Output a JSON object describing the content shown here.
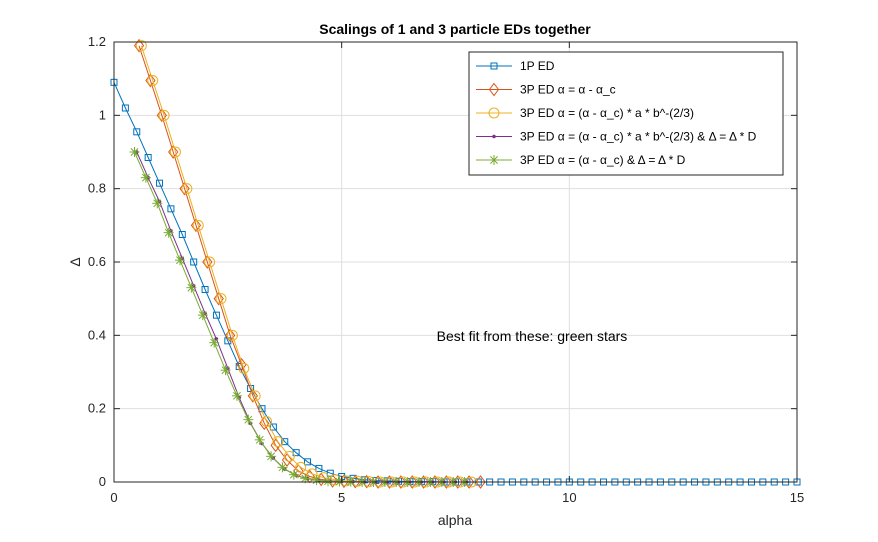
{
  "chart_data": {
    "type": "line",
    "title": "Scalings of 1 and 3 particle EDs together",
    "xlabel": "alpha",
    "ylabel": "Δ",
    "xlim": [
      0,
      15
    ],
    "ylim": [
      0,
      1.2
    ],
    "xticks": [
      "0",
      "5",
      "10",
      "15"
    ],
    "yticks": [
      "0",
      "0.2",
      "0.4",
      "0.6",
      "0.8",
      "1",
      "1.2"
    ],
    "grid": true,
    "legend_position": "top-right",
    "annotation": "Best fit from these: green stars",
    "series": [
      {
        "name": "1P ED",
        "color": "#0072BD",
        "marker": "square",
        "x": [
          0,
          0.25,
          0.5,
          0.75,
          1,
          1.25,
          1.5,
          1.75,
          2,
          2.25,
          2.5,
          2.75,
          3,
          3.25,
          3.5,
          3.75,
          4,
          4.25,
          4.5,
          4.75,
          5,
          5.25,
          5.5,
          5.75,
          6,
          6.25,
          6.5,
          6.75,
          7,
          7.25,
          7.5,
          7.75,
          8,
          8.25,
          8.5,
          8.75,
          9,
          9.25,
          9.5,
          9.75,
          10,
          10.25,
          10.5,
          10.75,
          11,
          11.25,
          11.5,
          11.75,
          12,
          12.25,
          12.5,
          12.75,
          13,
          13.25,
          13.5,
          13.75,
          14,
          14.25,
          14.5,
          14.75,
          15
        ],
        "y": [
          1.09,
          1.02,
          0.955,
          0.885,
          0.815,
          0.745,
          0.675,
          0.6,
          0.525,
          0.455,
          0.385,
          0.315,
          0.255,
          0.2,
          0.15,
          0.11,
          0.08,
          0.055,
          0.037,
          0.024,
          0.015,
          0.01,
          0.006,
          0.004,
          0.003,
          0.002,
          0.001,
          0.001,
          0.001,
          0,
          0,
          0,
          0,
          0,
          0,
          0,
          0,
          0,
          0,
          0,
          0,
          0,
          0,
          0,
          0,
          0,
          0,
          0,
          0,
          0,
          0,
          0,
          0,
          0,
          0,
          0,
          0,
          0,
          0,
          0,
          0
        ]
      },
      {
        "name": "3P ED α = α - α_c",
        "color": "#D95319",
        "marker": "diamond",
        "x": [
          0.55,
          0.8,
          1.05,
          1.3,
          1.55,
          1.8,
          2.05,
          2.3,
          2.55,
          2.8,
          3.05,
          3.3,
          3.55,
          3.8,
          4.05,
          4.3,
          4.55,
          4.8,
          5.05,
          5.3,
          5.55,
          5.8,
          6.05,
          6.3,
          6.55,
          6.8,
          7.05,
          7.3,
          7.55,
          7.8,
          8.05
        ],
        "y": [
          1.19,
          1.095,
          1.0,
          0.9,
          0.8,
          0.7,
          0.6,
          0.5,
          0.4,
          0.32,
          0.235,
          0.16,
          0.1,
          0.06,
          0.03,
          0.015,
          0.007,
          0.003,
          0.002,
          0.001,
          0.001,
          0,
          0,
          0,
          0,
          0,
          0,
          0,
          0,
          0,
          0
        ]
      },
      {
        "name": "3P ED α = (α - α_c) * a * b^-(2/3)",
        "color": "#EDB120",
        "marker": "circle",
        "x": [
          0.6,
          0.85,
          1.1,
          1.35,
          1.6,
          1.85,
          2.1,
          2.35,
          2.6,
          2.85,
          3.1,
          3.35,
          3.6,
          3.85,
          4.1,
          4.35,
          4.6,
          4.85,
          5.1,
          5.35,
          5.6,
          5.85,
          6.1,
          6.35,
          6.6,
          6.85,
          7.1,
          7.35,
          7.6,
          7.85
        ],
        "y": [
          1.19,
          1.095,
          1.0,
          0.9,
          0.8,
          0.7,
          0.6,
          0.5,
          0.4,
          0.31,
          0.235,
          0.165,
          0.11,
          0.07,
          0.04,
          0.022,
          0.012,
          0.006,
          0.003,
          0.002,
          0.001,
          0,
          0,
          0,
          0,
          0,
          0,
          0,
          0,
          0
        ]
      },
      {
        "name": "3P ED α = (α - α_c) * a * b^-(2/3) & Δ = Δ * D",
        "color": "#7E2F8E",
        "marker": "point",
        "x": [
          0.5,
          0.75,
          1.0,
          1.25,
          1.5,
          1.75,
          2.0,
          2.25,
          2.5,
          2.75,
          3.0,
          3.25,
          3.5,
          3.75,
          4.0,
          4.25,
          4.5,
          4.75,
          5.0,
          5.25,
          5.5,
          5.75,
          6.0,
          6.25,
          6.5,
          6.75,
          7.0,
          7.25,
          7.5,
          7.75
        ],
        "y": [
          0.9,
          0.83,
          0.765,
          0.685,
          0.61,
          0.535,
          0.46,
          0.39,
          0.31,
          0.23,
          0.16,
          0.105,
          0.065,
          0.035,
          0.018,
          0.009,
          0.004,
          0.002,
          0.001,
          0.001,
          0,
          0,
          0,
          0,
          0,
          0,
          0,
          0,
          0,
          0
        ]
      },
      {
        "name": "3P ED α = (α - α_c) & Δ = Δ * D",
        "color": "#77AC30",
        "marker": "asterisk",
        "x": [
          0.45,
          0.7,
          0.95,
          1.2,
          1.45,
          1.7,
          1.95,
          2.2,
          2.45,
          2.7,
          2.95,
          3.2,
          3.45,
          3.7,
          3.95,
          4.2,
          4.45,
          4.7,
          4.95,
          5.2,
          5.45,
          5.7,
          5.95,
          6.2,
          6.45,
          6.7,
          6.95,
          7.2,
          7.45,
          7.7
        ],
        "y": [
          0.9,
          0.83,
          0.76,
          0.68,
          0.605,
          0.53,
          0.455,
          0.38,
          0.305,
          0.235,
          0.17,
          0.115,
          0.07,
          0.04,
          0.02,
          0.01,
          0.005,
          0.002,
          0.001,
          0.001,
          0,
          0,
          0,
          0,
          0,
          0,
          0,
          0,
          0,
          0
        ]
      }
    ]
  }
}
